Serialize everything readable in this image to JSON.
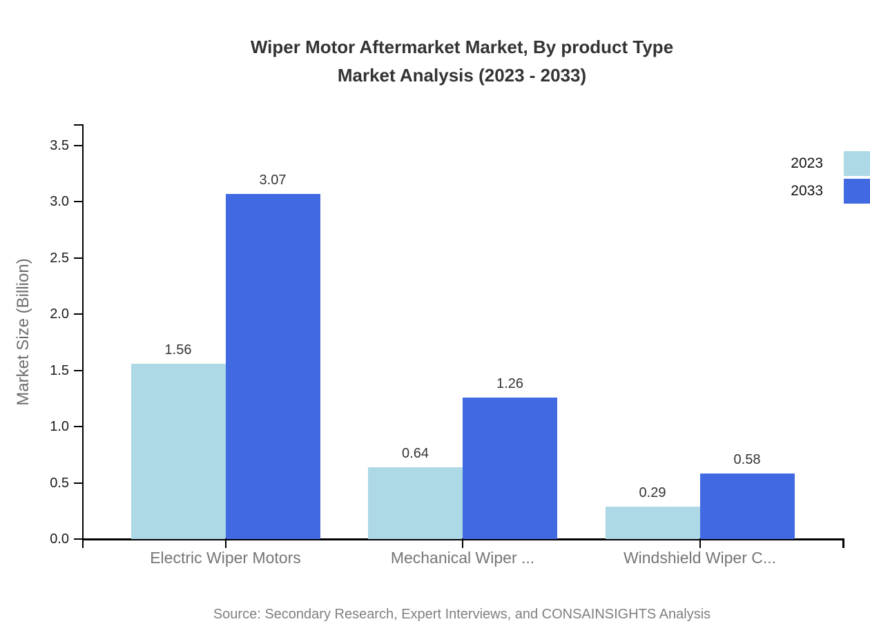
{
  "title": {
    "line1": "Wiper Motor Aftermarket Market, By product Type",
    "line2": "Market Analysis (2023 - 2033)"
  },
  "source": "Source: Secondary Research, Expert Interviews, and CONSAINSIGHTS Analysis",
  "chart_data": {
    "type": "bar",
    "title": "Wiper Motor Aftermarket Market, By product Type Market Analysis (2023 - 2033)",
    "categories": [
      "Electric Wiper Motors",
      "Mechanical Wiper ...",
      "Windshield Wiper C..."
    ],
    "series": [
      {
        "name": "2023",
        "color": "#ADD8E6",
        "values": [
          1.56,
          0.64,
          0.29
        ]
      },
      {
        "name": "2033",
        "color": "#4169E1",
        "values": [
          3.07,
          1.26,
          0.58
        ]
      }
    ],
    "xlabel": "",
    "ylabel": "Market Size (Billion)",
    "ylim": [
      0,
      3.69
    ],
    "yticks": [
      0,
      0.5,
      1,
      1.5,
      2,
      2.5,
      3,
      3.5
    ],
    "value_labels": true,
    "grid": false,
    "legend_position": "right-edge-clipped"
  },
  "colors": {
    "axis": "#000000",
    "title_text": "#333333",
    "muted_text": "#757575",
    "source_text": "#808080"
  }
}
